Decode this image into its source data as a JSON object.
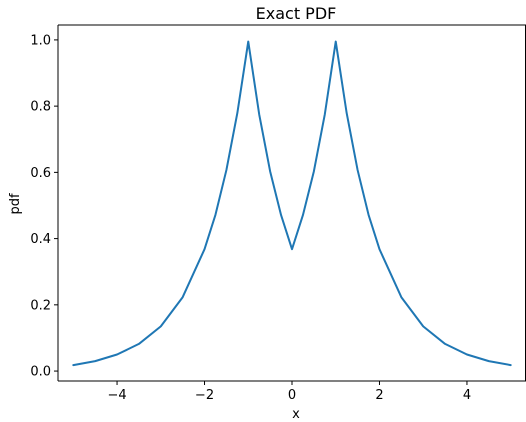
{
  "chart_data": {
    "type": "line",
    "title": "Exact PDF",
    "xlabel": "x",
    "ylabel": "pdf",
    "xlim": [
      -5.35,
      5.35
    ],
    "ylim": [
      -0.03,
      1.045
    ],
    "grid": false,
    "xticks": [
      -4,
      -2,
      0,
      2,
      4
    ],
    "xtick_labels": [
      "−4",
      "−2",
      "0",
      "2",
      "4"
    ],
    "yticks": [
      0.0,
      0.2,
      0.4,
      0.6,
      0.8,
      1.0
    ],
    "ytick_labels": [
      "0.0",
      "0.2",
      "0.4",
      "0.6",
      "0.8",
      "1.0"
    ],
    "series": [
      {
        "color": "#1f77b4",
        "x": [
          -5.0,
          -4.5,
          -4.0,
          -3.5,
          -3.0,
          -2.5,
          -2.0,
          -1.75,
          -1.5,
          -1.25,
          -1.0,
          -0.75,
          -0.5,
          -0.25,
          0.0,
          0.25,
          0.5,
          0.75,
          1.0,
          1.25,
          1.5,
          1.75,
          2.0,
          2.5,
          3.0,
          3.5,
          4.0,
          4.5,
          5.0
        ],
        "y": [
          0.018,
          0.03,
          0.05,
          0.082,
          0.135,
          0.223,
          0.368,
          0.472,
          0.607,
          0.779,
          0.995,
          0.775,
          0.603,
          0.471,
          0.368,
          0.471,
          0.603,
          0.775,
          0.995,
          0.779,
          0.607,
          0.472,
          0.368,
          0.223,
          0.135,
          0.082,
          0.05,
          0.03,
          0.018
        ]
      }
    ]
  }
}
